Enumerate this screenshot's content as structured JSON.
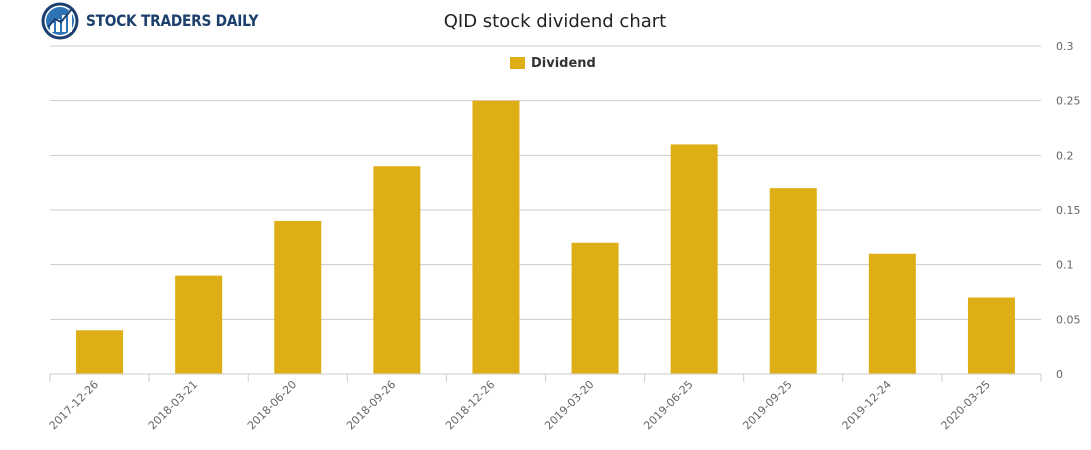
{
  "logo": {
    "text": "STOCK TRADERS DAILY",
    "text_color": "#1C3F6E",
    "icon": "bar-chart-globe-icon"
  },
  "colors": {
    "bar": "#DEAE17",
    "grid": "#CCCCCC",
    "axis_text": "#666666"
  },
  "chart_data": {
    "type": "bar",
    "title": "QID stock dividend chart",
    "xlabel": "",
    "ylabel": "",
    "categories": [
      "2017-12-26",
      "2018-03-21",
      "2018-06-20",
      "2018-09-26",
      "2018-12-26",
      "2019-03-20",
      "2019-06-25",
      "2019-09-25",
      "2019-12-24",
      "2020-03-25"
    ],
    "series": [
      {
        "name": "Dividend",
        "values": [
          0.04,
          0.09,
          0.14,
          0.19,
          0.25,
          0.12,
          0.21,
          0.17,
          0.11,
          0.07
        ]
      }
    ],
    "ylim": [
      0,
      0.3
    ],
    "yticks": [
      "0",
      "0.05",
      "0.1",
      "0.15",
      "0.2",
      "0.25",
      "0.3"
    ],
    "grid": true,
    "legend_position": "top-center",
    "y_axis_side": "right"
  }
}
